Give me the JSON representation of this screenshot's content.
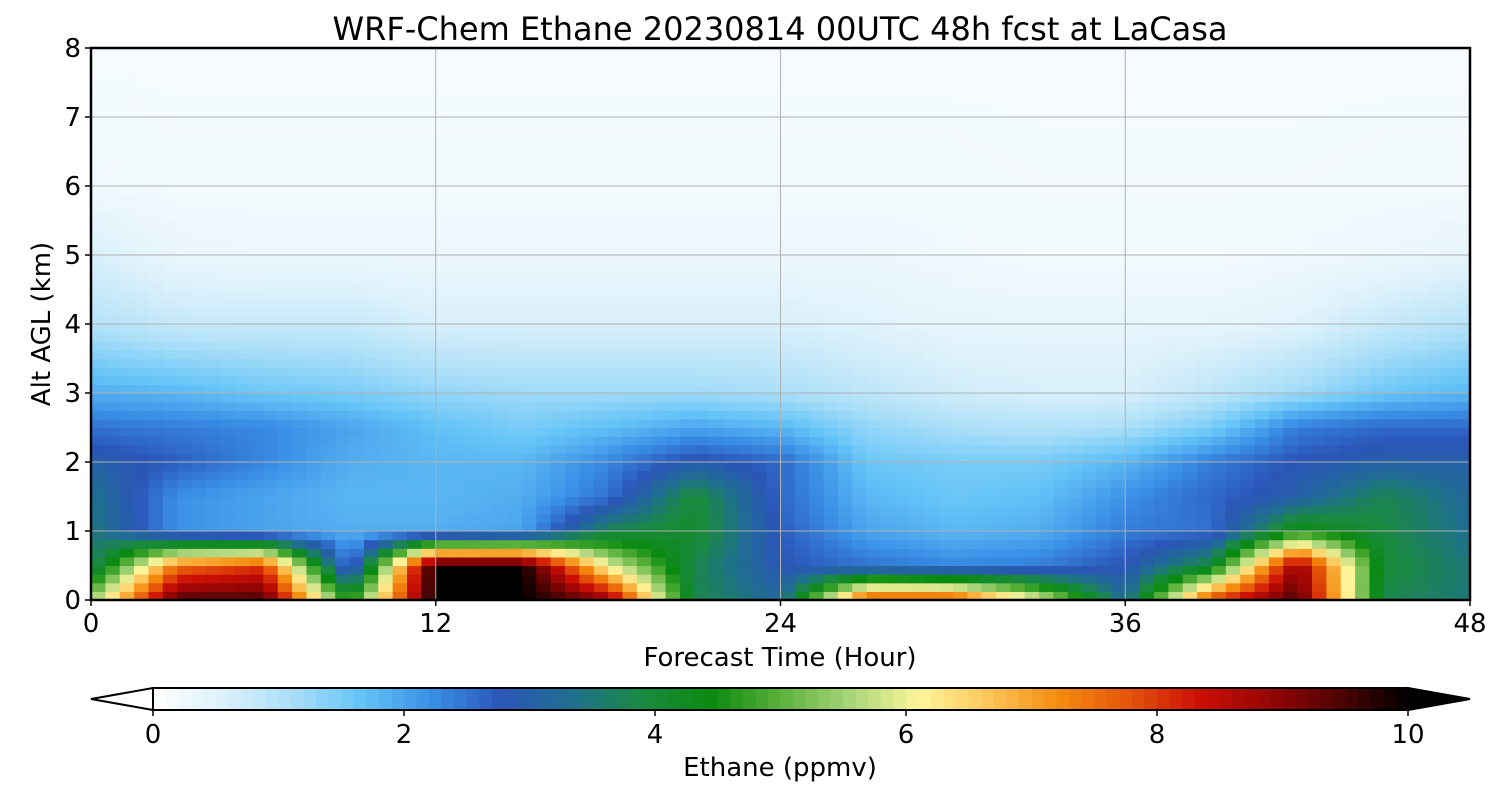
{
  "chart_data": {
    "type": "heatmap",
    "title": "WRF-Chem Ethane  20230814 00UTC 48h fcst at LaCasa",
    "xlabel": "Forecast Time (Hour)",
    "ylabel": "Alt AGL (km)",
    "xlim": [
      0,
      48
    ],
    "ylim": [
      0,
      8
    ],
    "xticks": [
      "0",
      "12",
      "24",
      "36",
      "48"
    ],
    "yticks": [
      "0",
      "1",
      "2",
      "3",
      "4",
      "5",
      "6",
      "7",
      "8"
    ],
    "grid": true,
    "colorbar": {
      "label": "Ethane  (ppmv)",
      "min": 0,
      "max": 10,
      "ticks": [
        "0",
        "2",
        "4",
        "6",
        "8",
        "10"
      ],
      "extend": "both",
      "colors": [
        "#ffffff",
        "#dcf1fb",
        "#a9def8",
        "#63c3f7",
        "#3a8fe6",
        "#2a56b8",
        "#1f6f8f",
        "#1a8a40",
        "#0a8a10",
        "#5ab13a",
        "#a8d57a",
        "#fff59a",
        "#fcc55a",
        "#f58a0c",
        "#e5540a",
        "#cc0f05",
        "#960505",
        "#500303",
        "#000000"
      ]
    },
    "x": [
      0,
      3,
      6,
      9,
      12,
      15,
      18,
      21,
      24,
      27,
      30,
      33,
      36,
      39,
      42,
      45,
      48
    ],
    "y": [
      0,
      0.5,
      1,
      1.5,
      2,
      2.5,
      3,
      4,
      5,
      6,
      8
    ],
    "values": [
      [
        5.5,
        9.5,
        9.5,
        4.5,
        10,
        10,
        9,
        3.8,
        3.2,
        8,
        8,
        6,
        3.2,
        8,
        9.5,
        3.8,
        3.5
      ],
      [
        3.6,
        7.5,
        8,
        2.2,
        10,
        10,
        6,
        3.8,
        2.8,
        2.5,
        2.3,
        2.4,
        2.8,
        4,
        9,
        4,
        3.5
      ],
      [
        3.5,
        2.2,
        2,
        1.9,
        1.9,
        2,
        3.8,
        4.1,
        2.7,
        2,
        1.8,
        1.9,
        2.4,
        2.5,
        4.5,
        3.9,
        3.3
      ],
      [
        3.4,
        2.2,
        2,
        1.8,
        1.8,
        1.9,
        2.5,
        4,
        2.6,
        1.8,
        1.6,
        1.7,
        2.2,
        2.6,
        3,
        3.8,
        3.2
      ],
      [
        3,
        2.7,
        2.3,
        1.9,
        1.8,
        1.8,
        2.3,
        2.9,
        2.6,
        1.6,
        1.5,
        1.5,
        1.8,
        2.4,
        2.8,
        3,
        3
      ],
      [
        2.5,
        2.4,
        2.3,
        2,
        1.7,
        1.5,
        1.7,
        2,
        1.8,
        1.3,
        1.1,
        1,
        1.1,
        1.5,
        2.4,
        2.6,
        2.6
      ],
      [
        1.9,
        1.8,
        1.6,
        1.5,
        1.3,
        1.2,
        1.2,
        1.2,
        1.1,
        0.9,
        0.7,
        0.6,
        0.6,
        0.9,
        1.2,
        1.6,
        1.8
      ],
      [
        1,
        0.8,
        0.8,
        0.8,
        0.6,
        0.6,
        0.6,
        0.6,
        0.6,
        0.5,
        0.4,
        0.4,
        0.4,
        0.4,
        0.5,
        0.8,
        1
      ],
      [
        0.6,
        0.35,
        0.3,
        0.3,
        0.3,
        0.3,
        0.3,
        0.3,
        0.3,
        0.3,
        0.25,
        0.2,
        0.2,
        0.2,
        0.25,
        0.3,
        0.4
      ],
      [
        0.25,
        0.2,
        0.2,
        0.2,
        0.2,
        0.2,
        0.2,
        0.2,
        0.2,
        0.2,
        0.2,
        0.18,
        0.18,
        0.18,
        0.18,
        0.2,
        0.2
      ],
      [
        0.15,
        0.15,
        0.15,
        0.15,
        0.15,
        0.15,
        0.15,
        0.15,
        0.15,
        0.15,
        0.15,
        0.15,
        0.15,
        0.15,
        0.15,
        0.15,
        0.15
      ]
    ]
  }
}
